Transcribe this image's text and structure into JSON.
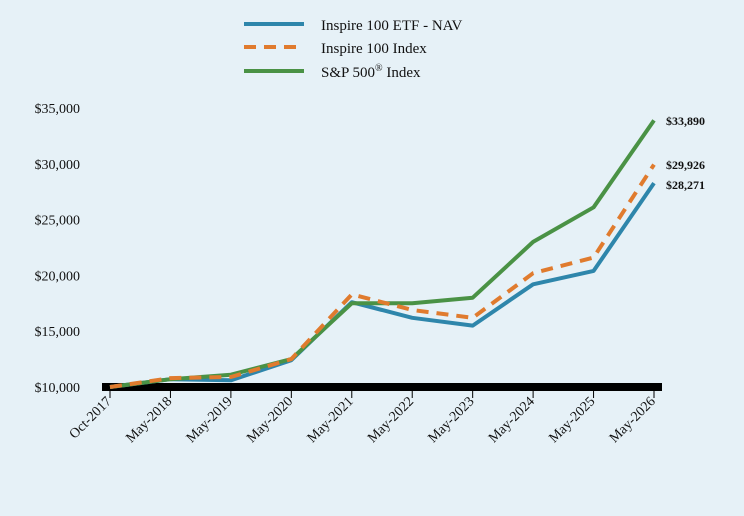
{
  "chart_data": {
    "type": "line",
    "title": "",
    "xlabel": "",
    "ylabel": "",
    "categories": [
      "Oct-2017",
      "May-2018",
      "May-2019",
      "May-2020",
      "May-2021",
      "May-2022",
      "May-2023",
      "May-2024",
      "May-2025",
      "May-2026"
    ],
    "ylim": [
      10000,
      35000
    ],
    "yticks": [
      "$10,000",
      "$15,000",
      "$20,000",
      "$25,000",
      "$30,000",
      "$35,000"
    ],
    "ytick_values": [
      10000,
      15000,
      20000,
      25000,
      30000,
      35000
    ],
    "grid": false,
    "legend_position": "top",
    "series": [
      {
        "name": "Inspire 100 ETF - NAV",
        "color": "#2e86ab",
        "dash": "solid",
        "values": [
          10000,
          10700,
          10600,
          12400,
          17600,
          16200,
          15500,
          19200,
          20400,
          28271
        ],
        "end_label": "$28,271"
      },
      {
        "name": "Inspire 100 Index",
        "color": "#e07b2e",
        "dash": "dashed",
        "values": [
          10000,
          10800,
          10900,
          12500,
          18300,
          16900,
          16200,
          20200,
          21600,
          29926
        ],
        "end_label": "$29,926"
      },
      {
        "name": "S&P 500",
        "name_suffix": "®",
        "name_tail": " Index",
        "color": "#4a9245",
        "dash": "solid",
        "values": [
          10000,
          10700,
          11100,
          12500,
          17500,
          17500,
          18000,
          23000,
          26100,
          33890
        ],
        "end_label": "$33,890"
      }
    ]
  }
}
